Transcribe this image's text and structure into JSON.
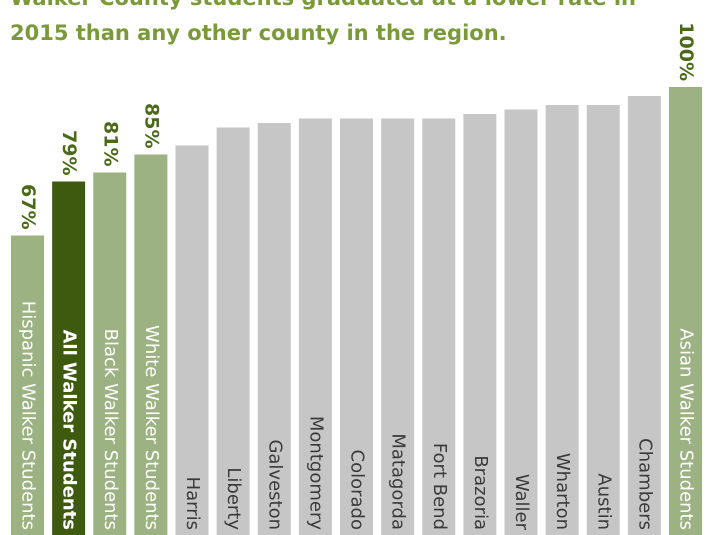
{
  "chart_data": {
    "type": "bar",
    "title": [
      "Walker County students graduated at a lower rate in",
      "2015 than any other county in the region."
    ],
    "categories": [
      "Hispanic Walker Students",
      "All Walker Students",
      "Black Walker Students",
      "White Walker Students",
      "Harris",
      "Liberty",
      "Galveston",
      "Montgomery",
      "Colorado",
      "Matagorda",
      "Fort Bend",
      "Brazoria",
      "Waller",
      "Wharton",
      "Austin",
      "Chambers",
      "Asian Walker Students"
    ],
    "values": [
      67,
      79,
      81,
      85,
      87,
      91,
      92,
      93,
      93,
      93,
      93,
      94,
      95,
      96,
      96,
      98,
      100
    ],
    "value_labels": [
      "67%",
      "79%",
      "81%",
      "85%",
      null,
      null,
      null,
      null,
      null,
      null,
      null,
      null,
      null,
      null,
      null,
      null,
      "100%"
    ],
    "colors": [
      "#9cb283",
      "#3d5a0f",
      "#9cb283",
      "#9cb283",
      "#c6c6c6",
      "#c6c6c6",
      "#c6c6c6",
      "#c6c6c6",
      "#c6c6c6",
      "#c6c6c6",
      "#c6c6c6",
      "#c6c6c6",
      "#c6c6c6",
      "#c6c6c6",
      "#c6c6c6",
      "#c6c6c6",
      "#9cb283"
    ],
    "ylim": [
      0,
      100
    ]
  }
}
